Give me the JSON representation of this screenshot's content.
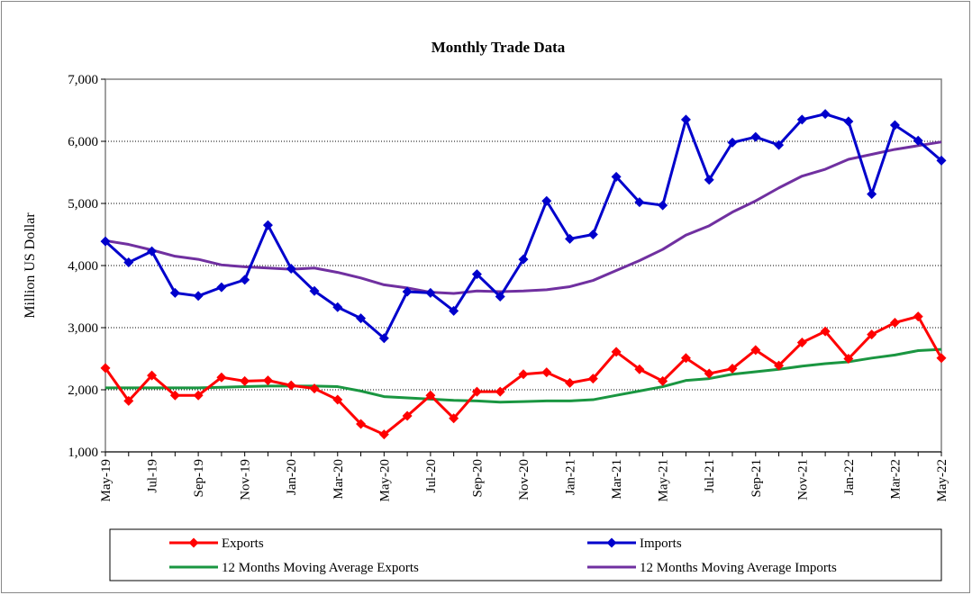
{
  "chart_data": {
    "type": "line",
    "title": "Monthly Trade Data",
    "y_label": "Million US Dollar",
    "categories": [
      "May-19",
      null,
      "Jul-19",
      null,
      "Sep-19",
      null,
      "Nov-19",
      null,
      "Jan-20",
      null,
      "Mar-20",
      null,
      "May-20",
      null,
      "Jul-20",
      null,
      "Sep-20",
      null,
      "Nov-20",
      null,
      "Jan-21",
      null,
      "Mar-21",
      null,
      "May-21",
      null,
      "Jul-21",
      null,
      "Sep-21",
      null,
      "Nov-21",
      null,
      "Jan-22",
      null,
      "Mar-22",
      null,
      "May-22"
    ],
    "series": [
      {
        "name": "Exports",
        "color": "#ff0000",
        "marker": "diamond",
        "values": [
          2350,
          1820,
          2230,
          1910,
          1910,
          2200,
          2140,
          2150,
          2070,
          2020,
          1840,
          1450,
          1280,
          1580,
          1910,
          1540,
          1970,
          1970,
          2250,
          2280,
          2110,
          2180,
          2610,
          2330,
          2140,
          2510,
          2260,
          2340,
          2640,
          2390,
          2760,
          2940,
          2500,
          2890,
          3080,
          3180,
          2510
        ]
      },
      {
        "name": "Imports",
        "color": "#0000cc",
        "marker": "diamond",
        "values": [
          4390,
          4050,
          4230,
          3560,
          3510,
          3650,
          3770,
          4650,
          3950,
          3590,
          3330,
          3150,
          2830,
          3580,
          3560,
          3270,
          3860,
          3500,
          4100,
          5040,
          4430,
          4500,
          5430,
          5020,
          4970,
          6350,
          5380,
          5980,
          6070,
          5940,
          6350,
          6440,
          6320,
          5150,
          6260,
          6010,
          5690
        ]
      },
      {
        "name": "12 Months Moving Average Exports",
        "color": "#1a9641",
        "marker": "none",
        "values": [
          2030,
          2030,
          2030,
          2030,
          2030,
          2040,
          2050,
          2060,
          2060,
          2060,
          2050,
          1980,
          1890,
          1870,
          1850,
          1830,
          1820,
          1800,
          1810,
          1820,
          1820,
          1840,
          1910,
          1980,
          2050,
          2150,
          2180,
          2250,
          2290,
          2330,
          2380,
          2420,
          2450,
          2510,
          2560,
          2630,
          2650
        ]
      },
      {
        "name": "12 Months Moving Average Imports",
        "color": "#7030a0",
        "marker": "none",
        "values": [
          4400,
          4340,
          4250,
          4150,
          4100,
          4010,
          3980,
          3960,
          3940,
          3960,
          3890,
          3800,
          3690,
          3640,
          3570,
          3550,
          3590,
          3580,
          3590,
          3610,
          3660,
          3760,
          3920,
          4080,
          4260,
          4490,
          4640,
          4860,
          5040,
          5250,
          5440,
          5550,
          5710,
          5790,
          5870,
          5930,
          5990
        ]
      }
    ],
    "ylim": [
      1000,
      7000
    ],
    "yticks": [
      {
        "value": 1000,
        "label": "1,000"
      },
      {
        "value": 2000,
        "label": "2,000"
      },
      {
        "value": 3000,
        "label": "3,000"
      },
      {
        "value": 4000,
        "label": "4,000"
      },
      {
        "value": 5000,
        "label": "5,000"
      },
      {
        "value": 6000,
        "label": "6,000"
      },
      {
        "value": 7000,
        "label": "7,000"
      }
    ],
    "grid": true,
    "legend": "bottom"
  }
}
